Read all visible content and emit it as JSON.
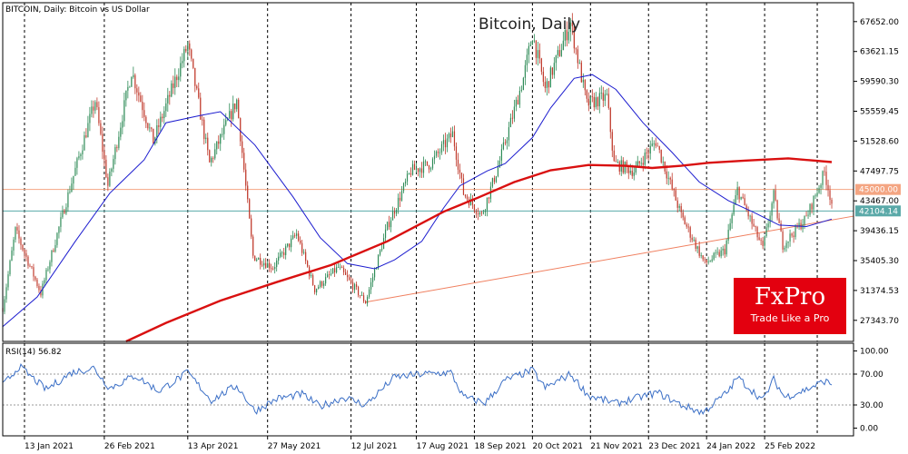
{
  "chart_data": {
    "type": "candlestick",
    "title": "Bitcoin, Daily",
    "symbol_label": "BITCOIN, Daily:  Bitcoin vs US Dollar",
    "price_axis": {
      "range": [
        24500,
        70200
      ],
      "ticks": [
        "67652.00",
        "63621.15",
        "59590.30",
        "55559.45",
        "51528.60",
        "47497.75",
        "43467.00",
        "39436.15",
        "35405.30",
        "31374.53",
        "27343.70"
      ],
      "tick_values": [
        67652,
        63621.15,
        59590.3,
        55559.45,
        51528.6,
        47497.75,
        43467,
        39436.15,
        35405.3,
        31374.53,
        27343.7
      ]
    },
    "time_axis": {
      "labels": [
        "13 Jan 2021",
        "26 Feb 2021",
        "13 Apr 2021",
        "27 May 2021",
        "12 Jul 2021",
        "17 Aug 2021",
        "18 Sep 2021",
        "20 Oct 2021",
        "21 Nov 2021",
        "23 Dec 2021",
        "24 Jan 2022",
        "25 Feb 2022"
      ],
      "start_date": "2021-01-01",
      "end_date": "2022-04-15"
    },
    "horizontal_levels": [
      {
        "value": 45000,
        "label": "45000.00",
        "color": "#f4a582"
      },
      {
        "value": 42104.14,
        "label": "42104.14",
        "color": "#5aa9a8"
      }
    ],
    "trendlines": [
      {
        "from": [
          "2021-07-20",
          29800
        ],
        "to": [
          "2022-04-15",
          41400
        ],
        "color": "#f08060"
      }
    ],
    "ma_fast": {
      "color": "#1c1ccf",
      "points": [
        [
          "2021-01-01",
          26500
        ],
        [
          "2021-01-20",
          30500
        ],
        [
          "2021-02-10",
          38000
        ],
        [
          "2021-03-01",
          44500
        ],
        [
          "2021-03-20",
          49000
        ],
        [
          "2021-04-01",
          54000
        ],
        [
          "2021-04-20",
          55000
        ],
        [
          "2021-05-01",
          55500
        ],
        [
          "2021-05-20",
          51000
        ],
        [
          "2021-06-10",
          44000
        ],
        [
          "2021-06-25",
          38500
        ],
        [
          "2021-07-10",
          35000
        ],
        [
          "2021-07-25",
          34300
        ],
        [
          "2021-08-05",
          35500
        ],
        [
          "2021-08-20",
          38000
        ],
        [
          "2021-09-01",
          42500
        ],
        [
          "2021-09-10",
          45500
        ],
        [
          "2021-09-25",
          47500
        ],
        [
          "2021-10-05",
          48500
        ],
        [
          "2021-10-20",
          52000
        ],
        [
          "2021-10-30",
          56000
        ],
        [
          "2021-11-12",
          60000
        ],
        [
          "2021-11-22",
          60500
        ],
        [
          "2021-12-05",
          58500
        ],
        [
          "2021-12-20",
          54000
        ],
        [
          "2022-01-05",
          50000
        ],
        [
          "2022-01-20",
          46000
        ],
        [
          "2022-02-05",
          43500
        ],
        [
          "2022-02-20",
          41800
        ],
        [
          "2022-03-05",
          40200
        ],
        [
          "2022-03-20",
          40000
        ],
        [
          "2022-04-03",
          41000
        ]
      ]
    },
    "ma_slow": {
      "color": "#d91010",
      "points": [
        [
          "2021-03-10",
          24500
        ],
        [
          "2021-04-01",
          27000
        ],
        [
          "2021-05-01",
          30000
        ],
        [
          "2021-06-01",
          32500
        ],
        [
          "2021-07-01",
          34800
        ],
        [
          "2021-08-01",
          38000
        ],
        [
          "2021-09-01",
          42000
        ],
        [
          "2021-09-20",
          43900
        ],
        [
          "2021-10-10",
          46000
        ],
        [
          "2021-10-30",
          47600
        ],
        [
          "2021-11-20",
          48300
        ],
        [
          "2021-12-10",
          48200
        ],
        [
          "2021-12-25",
          47900
        ],
        [
          "2022-01-10",
          48200
        ],
        [
          "2022-01-25",
          48600
        ],
        [
          "2022-02-15",
          48900
        ],
        [
          "2022-03-10",
          49200
        ],
        [
          "2022-04-03",
          48700
        ]
      ]
    },
    "price_path": [
      [
        "2021-01-01",
        29000
      ],
      [
        "2021-01-08",
        39500
      ],
      [
        "2021-01-22",
        31000
      ],
      [
        "2021-02-08",
        46000
      ],
      [
        "2021-02-21",
        57000
      ],
      [
        "2021-02-28",
        45500
      ],
      [
        "2021-03-13",
        61000
      ],
      [
        "2021-03-25",
        51500
      ],
      [
        "2021-04-13",
        64500
      ],
      [
        "2021-04-25",
        48500
      ],
      [
        "2021-05-10",
        57000
      ],
      [
        "2021-05-19",
        36000
      ],
      [
        "2021-05-30",
        34500
      ],
      [
        "2021-06-12",
        39000
      ],
      [
        "2021-06-22",
        31500
      ],
      [
        "2021-07-05",
        34500
      ],
      [
        "2021-07-20",
        29800
      ],
      [
        "2021-08-01",
        40000
      ],
      [
        "2021-08-14",
        47500
      ],
      [
        "2021-08-25",
        48500
      ],
      [
        "2021-09-06",
        52500
      ],
      [
        "2021-09-12",
        44500
      ],
      [
        "2021-09-22",
        41500
      ],
      [
        "2021-10-01",
        48000
      ],
      [
        "2021-10-15",
        60000
      ],
      [
        "2021-10-20",
        66000
      ],
      [
        "2021-10-27",
        58500
      ],
      [
        "2021-11-10",
        67500
      ],
      [
        "2021-11-19",
        56500
      ],
      [
        "2021-11-30",
        57500
      ],
      [
        "2021-12-04",
        48500
      ],
      [
        "2021-12-15",
        47500
      ],
      [
        "2021-12-27",
        51500
      ],
      [
        "2022-01-10",
        41500
      ],
      [
        "2022-01-23",
        35000
      ],
      [
        "2022-02-03",
        36800
      ],
      [
        "2022-02-10",
        45000
      ],
      [
        "2022-02-24",
        37000
      ],
      [
        "2022-03-02",
        44200
      ],
      [
        "2022-03-07",
        37500
      ],
      [
        "2022-03-20",
        41200
      ],
      [
        "2022-03-30",
        47300
      ],
      [
        "2022-04-03",
        43200
      ]
    ],
    "colors": {
      "bull": "#2e8b57",
      "bear": "#c0392b",
      "grid": "#000000",
      "axis": "#555555"
    },
    "rsi": {
      "label": "RSI(14) 56.82",
      "range": [
        0,
        100
      ],
      "ticks": [
        "100.00",
        "70.00",
        "30.00",
        "0.00"
      ],
      "tick_values": [
        100,
        70,
        30,
        0
      ],
      "levels": [
        70,
        30
      ],
      "color": "#3b6fc6",
      "points": [
        [
          "2021-01-01",
          55
        ],
        [
          "2021-01-10",
          80
        ],
        [
          "2021-01-25",
          50
        ],
        [
          "2021-02-08",
          72
        ],
        [
          "2021-02-20",
          78
        ],
        [
          "2021-03-01",
          52
        ],
        [
          "2021-03-15",
          68
        ],
        [
          "2021-03-28",
          48
        ],
        [
          "2021-04-13",
          72
        ],
        [
          "2021-04-26",
          36
        ],
        [
          "2021-05-10",
          55
        ],
        [
          "2021-05-20",
          22
        ],
        [
          "2021-06-01",
          38
        ],
        [
          "2021-06-15",
          44
        ],
        [
          "2021-06-25",
          28
        ],
        [
          "2021-07-08",
          40
        ],
        [
          "2021-07-20",
          30
        ],
        [
          "2021-08-05",
          66
        ],
        [
          "2021-08-20",
          70
        ],
        [
          "2021-09-05",
          72
        ],
        [
          "2021-09-12",
          40
        ],
        [
          "2021-09-24",
          33
        ],
        [
          "2021-10-05",
          62
        ],
        [
          "2021-10-20",
          75
        ],
        [
          "2021-10-27",
          52
        ],
        [
          "2021-11-10",
          70
        ],
        [
          "2021-11-20",
          42
        ],
        [
          "2021-12-05",
          32
        ],
        [
          "2021-12-18",
          40
        ],
        [
          "2021-12-28",
          46
        ],
        [
          "2022-01-10",
          30
        ],
        [
          "2022-01-22",
          20
        ],
        [
          "2022-02-05",
          48
        ],
        [
          "2022-02-10",
          66
        ],
        [
          "2022-02-24",
          36
        ],
        [
          "2022-03-02",
          63
        ],
        [
          "2022-03-08",
          40
        ],
        [
          "2022-03-20",
          50
        ],
        [
          "2022-03-30",
          61
        ],
        [
          "2022-04-03",
          57
        ]
      ]
    }
  },
  "logo": {
    "brand": "FxPro",
    "slogan": "Trade Like a Pro"
  }
}
